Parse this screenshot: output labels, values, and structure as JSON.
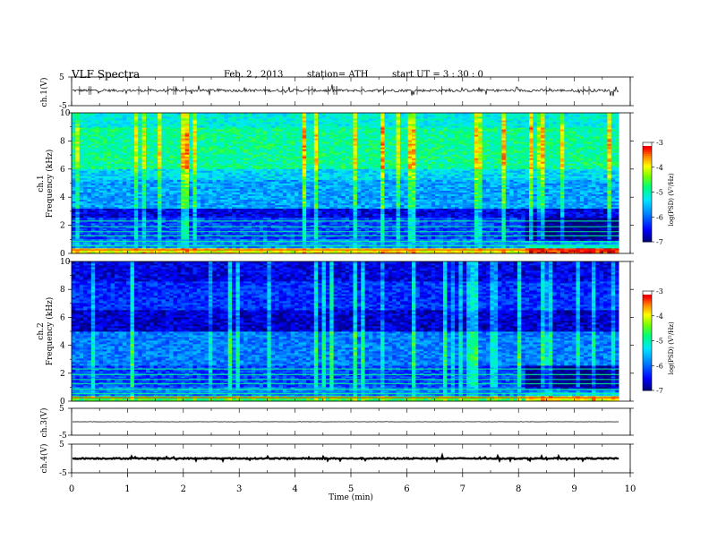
{
  "header": {
    "title": "VLF  Spectra",
    "date": "Feb. 2  , 2013",
    "station": "station= ATH",
    "start": "start  UT  =   3  : 30 : 0"
  },
  "panels": {
    "ch1_timeseries_ylabel": "ch.1(V)",
    "ch1_spectrogram_ylabel": "ch.1\nFrequency  (kHz)",
    "ch2_spectrogram_ylabel": "ch.2\nFrequency  (kHz)",
    "ch3_timeseries_ylabel": "ch.3(V)",
    "ch4_timeseries_ylabel": "ch.4(V)"
  },
  "colorbar": {
    "label": "log(PSD) (V²/Hz)",
    "ticks": [
      -3,
      -4,
      -5,
      -6,
      -7
    ],
    "colors": [
      "#000099",
      "#0000ff",
      "#0088ff",
      "#00ffff",
      "#00ff66",
      "#66ff00",
      "#ffff00",
      "#ff8800",
      "#ff0000",
      "#cc0000",
      "#ffffff"
    ]
  },
  "chart_data": [
    {
      "type": "line",
      "name": "ch1-voltage",
      "ylabel": "ch.1(V)",
      "xlabel": "Time  (min)",
      "xlim": [
        0,
        10
      ],
      "ylim": [
        -5,
        5
      ],
      "yticks": [
        5,
        -5
      ],
      "baseline_v": 0.3,
      "amplitude_v": 0.6,
      "data_end_min": 9.8
    },
    {
      "type": "heatmap",
      "name": "ch1-spectrogram",
      "ylabel": "Frequency  (kHz)",
      "xlim": [
        0,
        10
      ],
      "ylim": [
        0,
        10
      ],
      "yticks": [
        0,
        2,
        4,
        6,
        8,
        10
      ],
      "data_end_min": 9.8,
      "logpsd_range": [
        -7,
        -3
      ],
      "band_logpsd": [
        {
          "f": [
            0,
            0.4
          ],
          "v": -4.0
        },
        {
          "f": [
            0.4,
            1.0
          ],
          "v": -5.8
        },
        {
          "f": [
            1.0,
            2.6
          ],
          "v": -6.2
        },
        {
          "f": [
            2.6,
            3.2
          ],
          "v": -6.6
        },
        {
          "f": [
            3.2,
            5.2
          ],
          "v": -5.7
        },
        {
          "f": [
            5.2,
            6.0
          ],
          "v": -5.4
        },
        {
          "f": [
            6.0,
            9.0
          ],
          "v": -4.9
        },
        {
          "f": [
            9.0,
            10.0
          ],
          "v": -5.2
        }
      ]
    },
    {
      "type": "heatmap",
      "name": "ch2-spectrogram",
      "ylabel": "Frequency  (kHz)",
      "xlim": [
        0,
        10
      ],
      "ylim": [
        0,
        10
      ],
      "yticks": [
        0,
        2,
        4,
        6,
        8,
        10
      ],
      "data_end_min": 9.8,
      "logpsd_range": [
        -7,
        -3
      ],
      "band_logpsd": [
        {
          "f": [
            0,
            0.4
          ],
          "v": -4.6
        },
        {
          "f": [
            0.4,
            1.0
          ],
          "v": -5.9
        },
        {
          "f": [
            1.0,
            2.6
          ],
          "v": -6.2
        },
        {
          "f": [
            2.6,
            5.0
          ],
          "v": -5.9
        },
        {
          "f": [
            5.0,
            6.6
          ],
          "v": -6.7
        },
        {
          "f": [
            6.6,
            8.6
          ],
          "v": -6.3
        },
        {
          "f": [
            8.6,
            10.0
          ],
          "v": -6.6
        }
      ]
    },
    {
      "type": "line",
      "name": "ch3-voltage",
      "ylabel": "ch.3(V)",
      "xlim": [
        0,
        10
      ],
      "ylim": [
        -5,
        5
      ],
      "yticks": [
        5,
        -5
      ],
      "baseline_v": 0.0,
      "amplitude_v": 0.05,
      "data_end_min": 9.8
    },
    {
      "type": "line",
      "name": "ch4-voltage",
      "ylabel": "ch.4(V)",
      "xlim": [
        0,
        10
      ],
      "ylim": [
        -5,
        5
      ],
      "yticks": [
        5,
        -5
      ],
      "baseline_v": 0.0,
      "amplitude_v": 0.25,
      "data_end_min": 9.8
    }
  ],
  "xaxis": {
    "label": "Time  (min)",
    "ticks": [
      0,
      1,
      2,
      3,
      4,
      5,
      6,
      7,
      8,
      9,
      10
    ]
  }
}
